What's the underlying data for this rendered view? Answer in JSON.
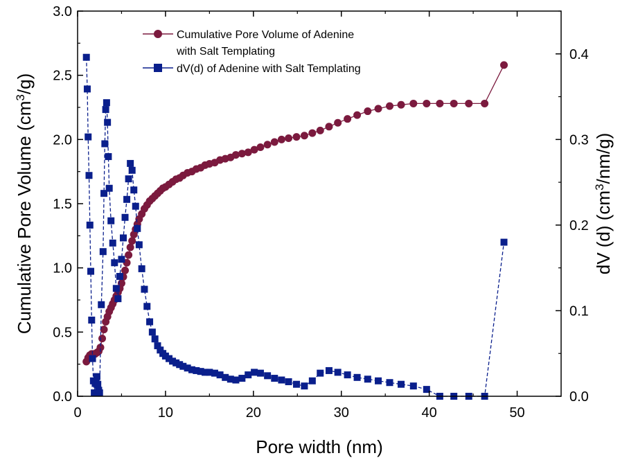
{
  "chart_data": {
    "type": "line",
    "xlabel": "Pore width (nm)",
    "ylabel_left_main": "Cumulative Pore Volume (cm",
    "ylabel_left_sup": "3",
    "ylabel_left_end": "/g)",
    "ylabel_right_main": "dV (d) (cm",
    "ylabel_right_sup": "3",
    "ylabel_right_end": "/nm/g)",
    "xlim": [
      0,
      55
    ],
    "ylim_left": [
      0,
      3.0
    ],
    "ylim_right": [
      0,
      0.45
    ],
    "x_ticks": [
      0,
      10,
      20,
      30,
      40,
      50
    ],
    "x_tick_labels": [
      "0",
      "10",
      "20",
      "30",
      "40",
      "50"
    ],
    "y_left_ticks": [
      0,
      0.5,
      1.0,
      1.5,
      2.0,
      2.5,
      3.0
    ],
    "y_left_tick_labels": [
      "0.0",
      "0.5",
      "1.0",
      "1.5",
      "2.0",
      "2.5",
      "3.0"
    ],
    "y_right_ticks": [
      0,
      0.1,
      0.2,
      0.3,
      0.4
    ],
    "y_right_tick_labels": [
      "0.0",
      "0.1",
      "0.2",
      "0.3",
      "0.4"
    ],
    "legend_position": "top-center",
    "grid": false,
    "series": [
      {
        "name_line1": "Cumulative Pore Volume of Adenine",
        "name_line2": "with Salt Templating",
        "axis": "left",
        "marker": "circle",
        "color": "#7b1a3e",
        "x": [
          1.0,
          1.2,
          1.4,
          1.6,
          1.8,
          2.0,
          2.2,
          2.4,
          2.6,
          2.8,
          3.0,
          3.2,
          3.4,
          3.6,
          3.8,
          4.0,
          4.2,
          4.4,
          4.6,
          4.8,
          5.0,
          5.2,
          5.4,
          5.6,
          5.8,
          6.0,
          6.2,
          6.4,
          6.6,
          6.8,
          7.0,
          7.3,
          7.6,
          7.9,
          8.2,
          8.5,
          8.8,
          9.1,
          9.4,
          9.7,
          10.0,
          10.4,
          10.8,
          11.2,
          11.6,
          12.0,
          12.5,
          13.0,
          13.5,
          14.0,
          14.5,
          15.0,
          15.6,
          16.2,
          16.8,
          17.4,
          18.0,
          18.7,
          19.4,
          20.1,
          20.8,
          21.6,
          22.4,
          23.2,
          24.0,
          24.9,
          25.8,
          26.7,
          27.6,
          28.6,
          29.6,
          30.7,
          31.8,
          33.0,
          34.2,
          35.5,
          36.8,
          38.2,
          39.7,
          41.2,
          42.8,
          44.5,
          46.3,
          48.5
        ],
        "values": [
          0.27,
          0.3,
          0.32,
          0.33,
          0.33,
          0.33,
          0.34,
          0.35,
          0.38,
          0.45,
          0.52,
          0.58,
          0.62,
          0.66,
          0.69,
          0.72,
          0.75,
          0.78,
          0.81,
          0.84,
          0.88,
          0.93,
          0.98,
          1.04,
          1.1,
          1.16,
          1.21,
          1.26,
          1.3,
          1.34,
          1.38,
          1.42,
          1.46,
          1.49,
          1.52,
          1.54,
          1.56,
          1.58,
          1.6,
          1.62,
          1.63,
          1.65,
          1.67,
          1.69,
          1.7,
          1.72,
          1.74,
          1.75,
          1.77,
          1.78,
          1.8,
          1.81,
          1.82,
          1.84,
          1.85,
          1.86,
          1.88,
          1.89,
          1.9,
          1.92,
          1.94,
          1.96,
          1.98,
          2.0,
          2.01,
          2.02,
          2.03,
          2.05,
          2.07,
          2.1,
          2.13,
          2.16,
          2.19,
          2.22,
          2.24,
          2.26,
          2.27,
          2.28,
          2.28,
          2.28,
          2.28,
          2.28,
          2.28,
          2.58
        ]
      },
      {
        "name": "dV(d) of Adenine with Salt Templating",
        "axis": "right",
        "marker": "square",
        "color": "#0a1f8c",
        "x": [
          1.0,
          1.1,
          1.2,
          1.3,
          1.4,
          1.5,
          1.6,
          1.7,
          1.8,
          1.9,
          2.0,
          2.1,
          2.2,
          2.3,
          2.4,
          2.5,
          2.7,
          2.9,
          3.0,
          3.1,
          3.2,
          3.3,
          3.4,
          3.5,
          3.6,
          3.8,
          4.0,
          4.2,
          4.4,
          4.6,
          4.8,
          5.0,
          5.2,
          5.4,
          5.6,
          5.8,
          6.0,
          6.2,
          6.4,
          6.6,
          6.8,
          7.0,
          7.3,
          7.6,
          7.9,
          8.2,
          8.5,
          8.8,
          9.1,
          9.4,
          9.7,
          10.0,
          10.4,
          10.8,
          11.2,
          11.6,
          12.0,
          12.5,
          13.0,
          13.5,
          14.0,
          14.5,
          15.0,
          15.6,
          16.2,
          16.8,
          17.4,
          18.0,
          18.7,
          19.4,
          20.1,
          20.8,
          21.6,
          22.4,
          23.2,
          24.0,
          24.9,
          25.8,
          26.7,
          27.6,
          28.6,
          29.6,
          30.7,
          31.8,
          33.0,
          34.2,
          35.5,
          36.8,
          38.2,
          39.7,
          41.2,
          42.8,
          44.5,
          46.3,
          48.5
        ],
        "values": [
          0.396,
          0.359,
          0.303,
          0.258,
          0.2,
          0.146,
          0.089,
          0.044,
          0.018,
          0.004,
          0.015,
          0.016,
          0.023,
          0.014,
          0.007,
          0.004,
          0.107,
          0.169,
          0.237,
          0.295,
          0.335,
          0.343,
          0.32,
          0.28,
          0.243,
          0.205,
          0.179,
          0.156,
          0.126,
          0.114,
          0.14,
          0.16,
          0.185,
          0.209,
          0.23,
          0.254,
          0.272,
          0.264,
          0.241,
          0.222,
          0.196,
          0.177,
          0.149,
          0.125,
          0.105,
          0.087,
          0.075,
          0.067,
          0.059,
          0.054,
          0.05,
          0.047,
          0.044,
          0.041,
          0.039,
          0.037,
          0.035,
          0.033,
          0.031,
          0.03,
          0.029,
          0.028,
          0.028,
          0.027,
          0.025,
          0.022,
          0.02,
          0.019,
          0.021,
          0.025,
          0.028,
          0.027,
          0.024,
          0.021,
          0.019,
          0.017,
          0.014,
          0.012,
          0.018,
          0.027,
          0.03,
          0.028,
          0.025,
          0.022,
          0.02,
          0.018,
          0.016,
          0.014,
          0.012,
          0.008,
          0.0,
          0.0,
          0.0,
          0.0,
          0.18
        ]
      }
    ]
  }
}
